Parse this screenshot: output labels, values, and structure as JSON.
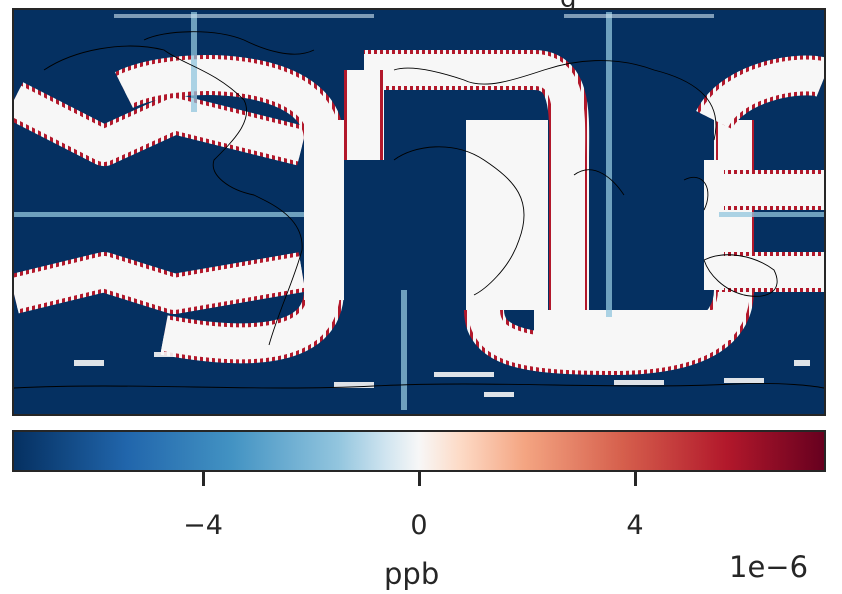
{
  "chart_data": {
    "type": "heatmap",
    "projection": "plate carree (global map with coastlines)",
    "title": "",
    "colormap": "RdBu_r (diverging)",
    "colorbar": {
      "label": "ppb",
      "scale": "1e−6",
      "ticks": [
        -4,
        0,
        4
      ],
      "tick_labels": [
        "−4",
        "0",
        "4"
      ],
      "range": [
        -7.5,
        7.5
      ],
      "orientation": "horizontal"
    },
    "field_description": {
      "background_value": -7.5,
      "ring_value": 0,
      "ring_edge_value": 7.5
    }
  },
  "colors": {
    "low": "#053061",
    "mid": "#f7f7f7",
    "high": "#67001f",
    "edge": "#b2182b",
    "frame": "#262626"
  }
}
